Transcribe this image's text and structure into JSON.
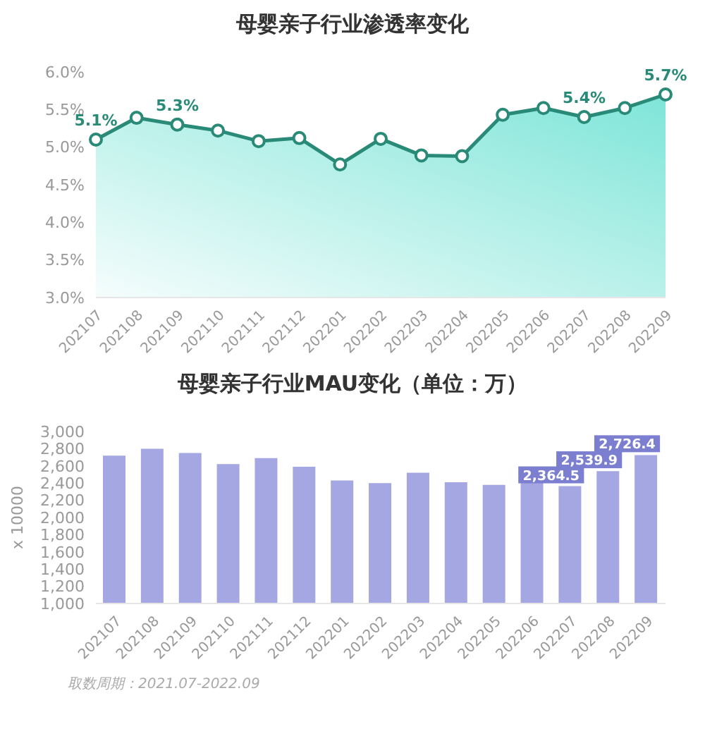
{
  "chart_data": [
    {
      "type": "area",
      "title": "母婴亲子行业渗透率变化",
      "categories": [
        "202107",
        "202108",
        "202109",
        "202110",
        "202111",
        "202112",
        "202201",
        "202202",
        "202203",
        "202204",
        "202205",
        "202206",
        "202207",
        "202208",
        "202209"
      ],
      "values": [
        5.1,
        5.39,
        5.3,
        5.22,
        5.08,
        5.12,
        4.77,
        5.11,
        4.89,
        4.88,
        5.43,
        5.52,
        5.4,
        5.52,
        5.7
      ],
      "value_labels": [
        "5.1%",
        null,
        "5.3%",
        null,
        null,
        null,
        null,
        null,
        null,
        null,
        null,
        null,
        "5.4%",
        null,
        "5.7%"
      ],
      "color": "#2a8a78",
      "marker": "circle",
      "ylim": [
        3,
        6
      ],
      "yticks": [
        {
          "value": 3,
          "label": "3.0%"
        },
        {
          "value": 3.5,
          "label": "3.5%"
        },
        {
          "value": 4,
          "label": "4.0%"
        },
        {
          "value": 4.5,
          "label": "4.5%"
        },
        {
          "value": 5,
          "label": "5.0%"
        },
        {
          "value": 5.5,
          "label": "5.5%"
        },
        {
          "value": 6,
          "label": "6.0%"
        }
      ]
    },
    {
      "type": "bar",
      "title": "母婴亲子行业MAU变化（单位：万）",
      "ylabel": "x 10000",
      "categories": [
        "202107",
        "202108",
        "202109",
        "202110",
        "202111",
        "202112",
        "202201",
        "202202",
        "202203",
        "202204",
        "202205",
        "202206",
        "202207",
        "202208",
        "202209"
      ],
      "values": [
        2720,
        2800,
        2750,
        2620,
        2690,
        2590,
        2430,
        2400,
        2520,
        2410,
        2380,
        2410,
        2364.5,
        2539.9,
        2726.4
      ],
      "value_labels": [
        null,
        null,
        null,
        null,
        null,
        null,
        null,
        null,
        null,
        null,
        null,
        null,
        "2,364.5",
        "2,539.9",
        "2,726.4"
      ],
      "color": "#a5a7e2",
      "ylim": [
        1000,
        3000
      ],
      "yticks": [
        {
          "value": 1000,
          "label": "1,000"
        },
        {
          "value": 1200,
          "label": "1,200"
        },
        {
          "value": 1400,
          "label": "1,400"
        },
        {
          "value": 1600,
          "label": "1,600"
        },
        {
          "value": 1800,
          "label": "1,800"
        },
        {
          "value": 2000,
          "label": "2,000"
        },
        {
          "value": 2200,
          "label": "2,200"
        },
        {
          "value": 2400,
          "label": "2,400"
        },
        {
          "value": 2600,
          "label": "2,600"
        },
        {
          "value": 2800,
          "label": "2,800"
        },
        {
          "value": 3000,
          "label": "3,000"
        }
      ],
      "annotations": [
        "取数周期：2021.07-2022.09"
      ]
    }
  ]
}
